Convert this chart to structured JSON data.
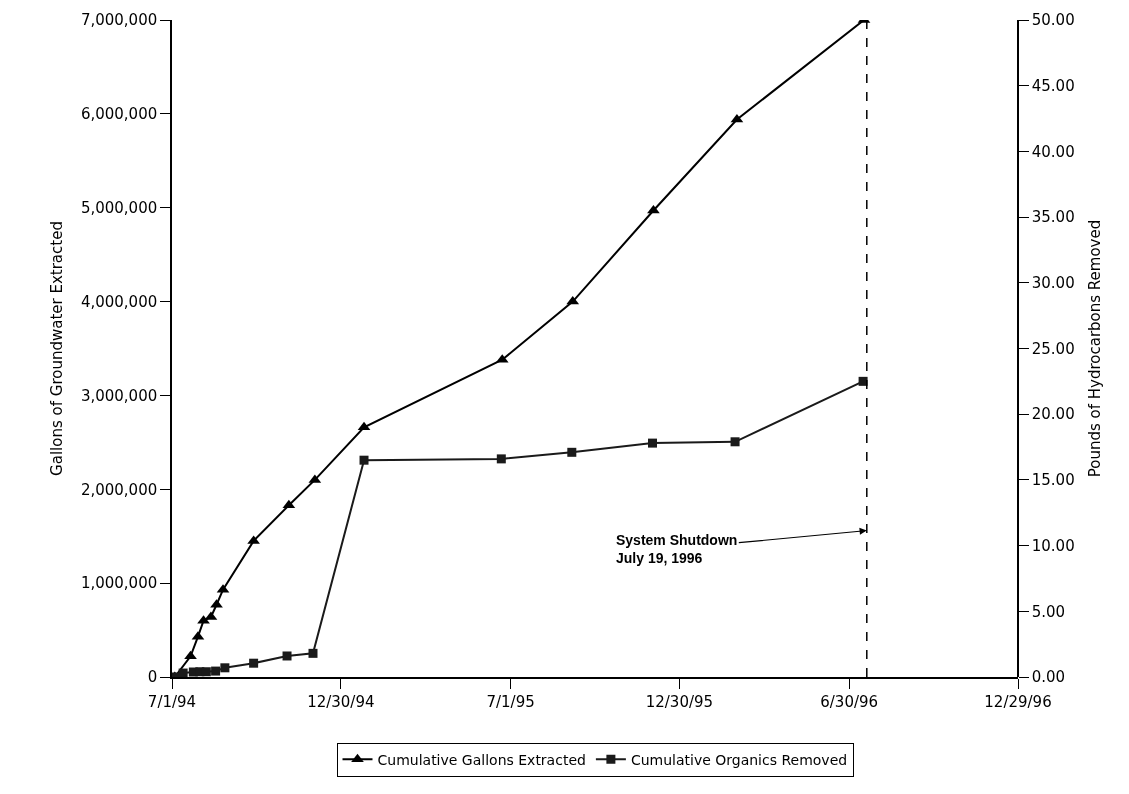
{
  "chart_data": {
    "type": "line",
    "xlabel": null,
    "ylabel": "Gallons of Groundwater Extracted",
    "y2label": "Pounds of Hydrocarbons Removed",
    "xlim": [
      "1994-07-01",
      "1996-12-29"
    ],
    "xticks": [
      {
        "value": "1994-07-01",
        "label": "7/1/94"
      },
      {
        "value": "1994-12-30",
        "label": "12/30/94"
      },
      {
        "value": "1995-07-01",
        "label": "7/1/95"
      },
      {
        "value": "1995-12-30",
        "label": "12/30/95"
      },
      {
        "value": "1996-06-30",
        "label": "6/30/96"
      },
      {
        "value": "1996-12-29",
        "label": "12/29/96"
      }
    ],
    "ylim": [
      0,
      7000000
    ],
    "yticks": [
      0,
      {
        "value": 1000000,
        "label": "1,000,000"
      },
      {
        "value": 2000000,
        "label": "2,000,000"
      },
      {
        "value": 3000000,
        "label": "3,000,000"
      },
      {
        "value": 4000000,
        "label": "4,000,000"
      },
      {
        "value": 5000000,
        "label": "5,000,000"
      },
      {
        "value": 6000000,
        "label": "6,000,000"
      },
      {
        "value": 7000000,
        "label": "7,000,000"
      }
    ],
    "y2lim": [
      0,
      50
    ],
    "y2ticks": [
      {
        "value": 0,
        "label": "0.00"
      },
      {
        "value": 5,
        "label": "5.00"
      },
      {
        "value": 10,
        "label": "10.00"
      },
      {
        "value": 15,
        "label": "15.00"
      },
      {
        "value": 20,
        "label": "20.00"
      },
      {
        "value": 25,
        "label": "25.00"
      },
      {
        "value": 30,
        "label": "30.00"
      },
      {
        "value": 35,
        "label": "35.00"
      },
      {
        "value": 40,
        "label": "40.00"
      },
      {
        "value": 45,
        "label": "45.00"
      },
      {
        "value": 50,
        "label": "50.00"
      }
    ],
    "series": [
      {
        "name": "Cumulative Gallons Extracted",
        "color": "#000000",
        "marker": "triangle",
        "x": [
          "1994-07-04",
          "1994-07-21",
          "1994-07-29",
          "1994-08-04",
          "1994-08-12",
          "1994-08-18",
          "1994-08-25",
          "1994-09-27",
          "1994-11-04",
          "1994-12-02",
          "1995-01-24",
          "1995-06-22",
          "1995-09-06",
          "1995-12-02",
          "1996-03-01",
          "1996-07-16"
        ],
        "values": [
          0,
          220000,
          430000,
          600000,
          640000,
          770000,
          930000,
          1450000,
          1830000,
          2100000,
          2660000,
          3380000,
          4000000,
          4970000,
          5940000,
          7000000
        ]
      },
      {
        "name": "Cumulative Organics Removed",
        "color": "#1a1a1a",
        "marker": "square",
        "axis": "y2",
        "x": [
          "1994-07-04",
          "1994-07-13",
          "1994-07-24",
          "1994-07-31",
          "1994-08-07",
          "1994-08-17",
          "1994-08-27",
          "1994-09-27",
          "1994-11-02",
          "1994-11-30",
          "1995-01-24",
          "1995-06-21",
          "1995-09-05",
          "1995-12-01",
          "1996-02-28",
          "1996-07-15"
        ],
        "values": [
          0,
          0.3,
          0.38,
          0.4,
          0.4,
          0.45,
          0.7,
          1.05,
          1.6,
          1.8,
          16.5,
          16.6,
          17.1,
          17.8,
          17.9,
          22.5
        ]
      }
    ],
    "ref_lines": [
      {
        "axis": "x",
        "value": "1996-07-19",
        "line_style": "dashed",
        "color": "#000000"
      }
    ],
    "annotations": [
      {
        "text": "System Shutdown\nJuly 19, 1996",
        "x": "1996-07-19",
        "y": 1560000
      }
    ],
    "legend": "bottom",
    "line_style": "solid"
  }
}
